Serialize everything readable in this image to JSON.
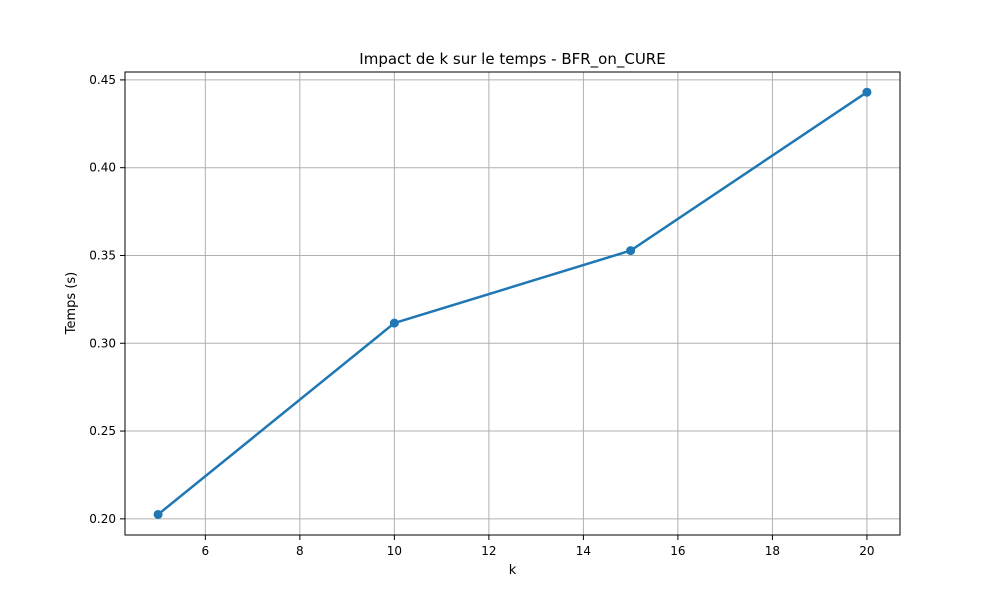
{
  "chart_data": {
    "type": "line",
    "title": "Impact de k sur le temps - BFR_on_CURE",
    "xlabel": "k",
    "ylabel": "Temps (s)",
    "xlim": [
      4.3,
      20.7
    ],
    "ylim": [
      0.1908,
      0.4545
    ],
    "xticks": [
      6,
      8,
      10,
      12,
      14,
      16,
      18,
      20
    ],
    "yticks": [
      0.2,
      0.25,
      0.3,
      0.35,
      0.4,
      0.45
    ],
    "xtick_labels": [
      "6",
      "8",
      "10",
      "12",
      "14",
      "16",
      "18",
      "20"
    ],
    "ytick_labels": [
      "0.20",
      "0.25",
      "0.30",
      "0.35",
      "0.40",
      "0.45"
    ],
    "grid": true,
    "series": [
      {
        "x": [
          5,
          10,
          15,
          20
        ],
        "y": [
          0.2025,
          0.3115,
          0.3528,
          0.443
        ],
        "color": "#1f77b4",
        "marker": "circle"
      }
    ]
  }
}
